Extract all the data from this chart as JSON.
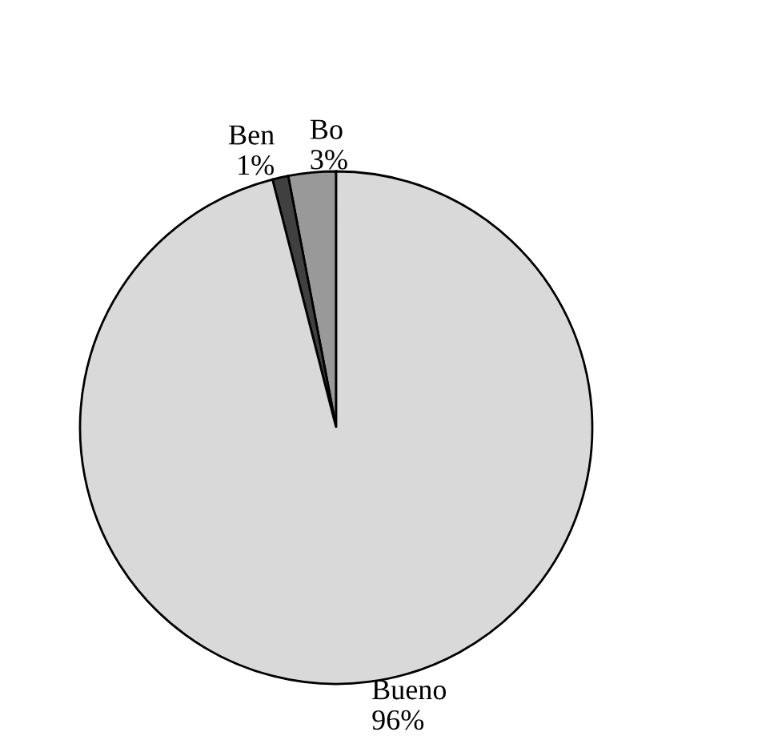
{
  "chart_data": {
    "type": "pie",
    "categories": [
      "Bo",
      "Ben",
      "Bueno"
    ],
    "values": [
      3,
      1,
      96
    ],
    "colors": [
      "#999999",
      "#404040",
      "#d9d9d9"
    ],
    "value_labels": [
      "3%",
      "1%",
      "96%"
    ],
    "legend": false
  }
}
